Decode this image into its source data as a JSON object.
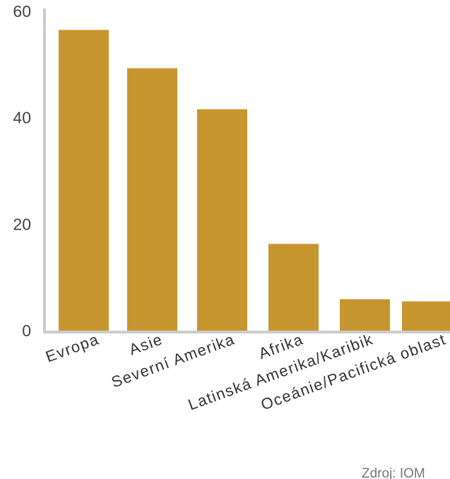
{
  "chart_data": {
    "type": "bar",
    "categories": [
      "Evropa",
      "Asie",
      "Severní Amerika",
      "Afrika",
      "Latinská Amerika/Karibik",
      "Oceánie/Pacifická oblast"
    ],
    "values": [
      56.5,
      49.3,
      41.6,
      16.3,
      5.9,
      5.5
    ],
    "title": "",
    "xlabel": "",
    "ylabel": "",
    "ylim": [
      0,
      60
    ],
    "yticks": [
      "0",
      "20",
      "40",
      "60"
    ],
    "grid": false,
    "legend": "none",
    "bar_color": "#c8962e",
    "axis_color": "#cccccc",
    "source": "Zdroj: IOM"
  }
}
